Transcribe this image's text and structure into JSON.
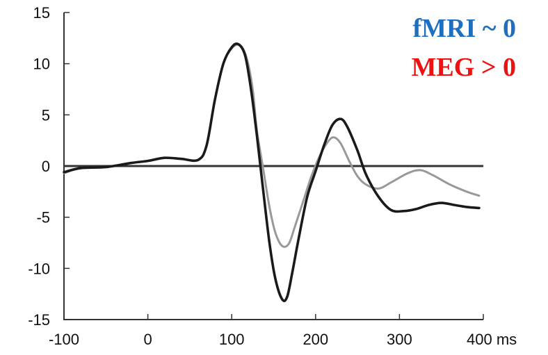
{
  "chart_data": {
    "type": "line",
    "title": "",
    "xlabel": "",
    "ylabel": "",
    "x_unit": "ms",
    "xlim": [
      -100,
      400
    ],
    "ylim": [
      -15,
      15
    ],
    "x_ticks": [
      -100,
      0,
      100,
      200,
      300,
      400
    ],
    "x_tick_labels": [
      "-100",
      "0",
      "100",
      "200",
      "300",
      "400 ms"
    ],
    "y_ticks": [
      15,
      10,
      5,
      0,
      -5,
      -10,
      -15
    ],
    "y_tick_labels": [
      "15",
      "10",
      "5",
      "0",
      "-5",
      "-10",
      "-15"
    ],
    "grid": false,
    "zero_line": true,
    "annotations": [
      {
        "text": "fMRI ~ 0",
        "color": "#1f6fc0"
      },
      {
        "text": "MEG > 0",
        "color": "#ee1111"
      }
    ],
    "series": [
      {
        "color": "#999999",
        "points": [
          [
            -100,
            -0.7
          ],
          [
            -80,
            -0.2
          ],
          [
            -50,
            -0.1
          ],
          [
            -20,
            0.3
          ],
          [
            0,
            0.5
          ],
          [
            20,
            0.8
          ],
          [
            40,
            0.7
          ],
          [
            60,
            0.6
          ],
          [
            70,
            2.0
          ],
          [
            80,
            6.5
          ],
          [
            90,
            10.0
          ],
          [
            100,
            11.5
          ],
          [
            110,
            11.8
          ],
          [
            118,
            10.5
          ],
          [
            125,
            7.5
          ],
          [
            130,
            3.5
          ],
          [
            138,
            -0.5
          ],
          [
            145,
            -4.0
          ],
          [
            152,
            -6.5
          ],
          [
            160,
            -7.8
          ],
          [
            168,
            -7.6
          ],
          [
            175,
            -6.0
          ],
          [
            185,
            -3.5
          ],
          [
            195,
            -1.0
          ],
          [
            205,
            1.0
          ],
          [
            215,
            2.4
          ],
          [
            222,
            2.8
          ],
          [
            230,
            2.2
          ],
          [
            240,
            0.5
          ],
          [
            250,
            -1.0
          ],
          [
            260,
            -1.8
          ],
          [
            275,
            -2.2
          ],
          [
            290,
            -1.6
          ],
          [
            310,
            -0.7
          ],
          [
            325,
            -0.4
          ],
          [
            340,
            -0.9
          ],
          [
            360,
            -1.8
          ],
          [
            380,
            -2.5
          ],
          [
            395,
            -2.9
          ]
        ]
      },
      {
        "color": "#1a1a1a",
        "points": [
          [
            -100,
            -0.6
          ],
          [
            -80,
            -0.2
          ],
          [
            -50,
            -0.1
          ],
          [
            -20,
            0.3
          ],
          [
            0,
            0.5
          ],
          [
            20,
            0.8
          ],
          [
            40,
            0.7
          ],
          [
            60,
            0.6
          ],
          [
            70,
            2.0
          ],
          [
            80,
            6.5
          ],
          [
            90,
            10.0
          ],
          [
            100,
            11.6
          ],
          [
            108,
            11.9
          ],
          [
            116,
            10.8
          ],
          [
            123,
            7.5
          ],
          [
            130,
            3.0
          ],
          [
            137,
            -2.0
          ],
          [
            145,
            -7.5
          ],
          [
            152,
            -11.0
          ],
          [
            160,
            -13.0
          ],
          [
            166,
            -12.8
          ],
          [
            172,
            -10.5
          ],
          [
            180,
            -7.0
          ],
          [
            190,
            -3.0
          ],
          [
            200,
            -0.5
          ],
          [
            210,
            2.0
          ],
          [
            220,
            4.0
          ],
          [
            230,
            4.6
          ],
          [
            238,
            3.8
          ],
          [
            250,
            1.5
          ],
          [
            260,
            -0.8
          ],
          [
            275,
            -3.0
          ],
          [
            290,
            -4.3
          ],
          [
            305,
            -4.4
          ],
          [
            320,
            -4.2
          ],
          [
            335,
            -3.8
          ],
          [
            350,
            -3.6
          ],
          [
            365,
            -3.8
          ],
          [
            380,
            -4.0
          ],
          [
            395,
            -4.1
          ]
        ]
      }
    ]
  }
}
